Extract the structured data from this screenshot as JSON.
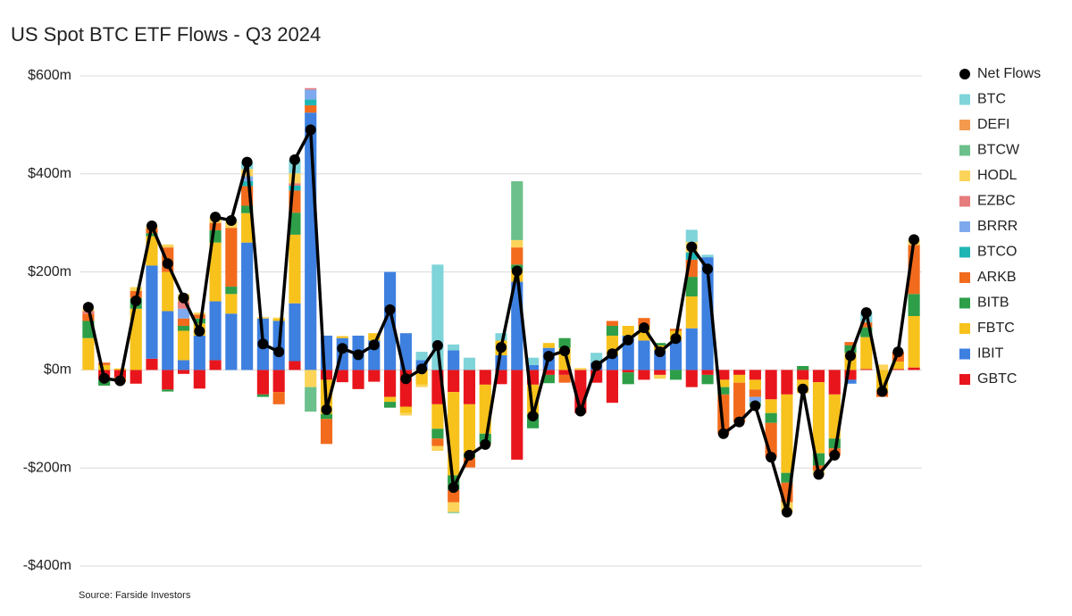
{
  "chart_data": {
    "type": "stacked-bar-line",
    "title": "US Spot BTC ETF Flows - Q3 2024",
    "source": "Source: Farside Investors",
    "ylim": [
      -400,
      600
    ],
    "yticks": [
      {
        "value": -400,
        "label": "-$400m"
      },
      {
        "value": -200,
        "label": "-$200m"
      },
      {
        "value": 0,
        "label": "$0m"
      },
      {
        "value": 200,
        "label": "$200m"
      },
      {
        "value": 400,
        "label": "$400m"
      },
      {
        "value": 600,
        "label": "$600m"
      }
    ],
    "grid": true,
    "legend": "right",
    "line_series": {
      "name": "Net Flows",
      "color": "#000000",
      "values": [
        128,
        -17,
        -22,
        141,
        294,
        217,
        147,
        79,
        312,
        305,
        424,
        53,
        37,
        429,
        490,
        -81,
        44,
        31,
        51,
        123,
        -18,
        2,
        50,
        -240,
        -174,
        -152,
        46,
        202,
        -94,
        28,
        39,
        -84,
        9,
        33,
        61,
        86,
        37,
        64,
        251,
        206,
        -130,
        -106,
        -73,
        -178,
        -290,
        -39,
        -213,
        -174,
        29,
        117,
        -44,
        37,
        266
      ]
    },
    "series": [
      {
        "name": "BTC",
        "color": "#7fd4d9",
        "values": [
          0,
          0,
          0,
          0,
          0,
          0,
          0,
          0,
          0,
          0,
          14,
          0,
          0,
          28,
          0,
          0,
          0,
          0,
          0,
          0,
          0,
          17,
          215,
          12,
          25,
          0,
          15,
          0,
          15,
          0,
          0,
          0,
          20,
          0,
          0,
          0,
          0,
          0,
          25,
          5,
          0,
          0,
          0,
          0,
          0,
          0,
          0,
          0,
          0,
          20,
          0,
          0,
          0
        ]
      },
      {
        "name": "DEFI",
        "color": "#f39a4f",
        "values": [
          0,
          0,
          0,
          0,
          0,
          0,
          0,
          0,
          0,
          0,
          0,
          0,
          0,
          0,
          0,
          0,
          0,
          0,
          0,
          0,
          0,
          0,
          0,
          0,
          0,
          0,
          0,
          0,
          0,
          0,
          0,
          0,
          0,
          0,
          0,
          0,
          0,
          0,
          0,
          0,
          0,
          0,
          0,
          0,
          0,
          0,
          0,
          0,
          0,
          0,
          0,
          0,
          0
        ]
      },
      {
        "name": "BTCW",
        "color": "#6cc08b",
        "values": [
          0,
          0,
          0,
          0,
          0,
          0,
          0,
          0,
          0,
          0,
          0,
          0,
          0,
          0,
          -50,
          0,
          0,
          0,
          0,
          0,
          0,
          0,
          0,
          -2,
          0,
          0,
          0,
          120,
          0,
          0,
          0,
          0,
          0,
          0,
          0,
          0,
          0,
          0,
          0,
          0,
          0,
          0,
          -8,
          0,
          0,
          0,
          0,
          0,
          0,
          0,
          0,
          0,
          0
        ]
      },
      {
        "name": "HODL",
        "color": "#fcd45a",
        "values": [
          5,
          0,
          0,
          8,
          5,
          6,
          15,
          4,
          12,
          15,
          15,
          3,
          2,
          20,
          -35,
          0,
          0,
          0,
          0,
          0,
          -5,
          -5,
          -10,
          -20,
          0,
          0,
          0,
          15,
          0,
          0,
          0,
          4,
          0,
          0,
          0,
          0,
          -8,
          0,
          21,
          0,
          0,
          0,
          0,
          0,
          -20,
          0,
          -8,
          0,
          0,
          0,
          11,
          0,
          11
        ]
      },
      {
        "name": "EZBC",
        "color": "#e67c7c",
        "values": [
          5,
          0,
          0,
          0,
          0,
          0,
          15,
          0,
          0,
          0,
          0,
          0,
          0,
          5,
          3,
          0,
          0,
          0,
          0,
          0,
          0,
          0,
          0,
          0,
          0,
          0,
          0,
          0,
          0,
          0,
          0,
          0,
          0,
          0,
          0,
          0,
          0,
          0,
          0,
          0,
          0,
          0,
          0,
          0,
          0,
          0,
          0,
          0,
          0,
          0,
          0,
          0,
          0
        ]
      },
      {
        "name": "BRRR",
        "color": "#7ea9ee",
        "values": [
          0,
          0,
          0,
          0,
          0,
          0,
          20,
          0,
          0,
          0,
          10,
          0,
          0,
          0,
          20,
          0,
          0,
          0,
          0,
          0,
          0,
          0,
          0,
          0,
          0,
          0,
          0,
          0,
          0,
          0,
          0,
          0,
          0,
          0,
          0,
          0,
          0,
          0,
          0,
          0,
          0,
          0,
          -10,
          0,
          0,
          0,
          0,
          0,
          0,
          0,
          0,
          0,
          0
        ]
      },
      {
        "name": "BTCO",
        "color": "#1fb5b5",
        "values": [
          0,
          0,
          0,
          0,
          0,
          0,
          0,
          0,
          0,
          0,
          10,
          0,
          0,
          10,
          12,
          0,
          0,
          0,
          0,
          0,
          0,
          0,
          0,
          0,
          0,
          0,
          0,
          0,
          0,
          0,
          0,
          0,
          0,
          0,
          0,
          0,
          0,
          0,
          15,
          0,
          0,
          0,
          0,
          0,
          0,
          0,
          0,
          0,
          0,
          0,
          0,
          0,
          0
        ]
      },
      {
        "name": "ARKB",
        "color": "#f26b1d",
        "values": [
          15,
          5,
          -10,
          14,
          10,
          50,
          15,
          8,
          15,
          120,
          40,
          0,
          -25,
          45,
          15,
          -51,
          0,
          0,
          0,
          0,
          0,
          0,
          -15,
          -25,
          -20,
          -2,
          0,
          35,
          0,
          0,
          -16,
          0,
          0,
          10,
          0,
          16,
          0,
          4,
          35,
          0,
          -80,
          -80,
          -15,
          -70,
          -40,
          0,
          -10,
          -14,
          7,
          10,
          -10,
          20,
          100
        ]
      },
      {
        "name": "BITB",
        "color": "#2e9e48",
        "values": [
          35,
          -12,
          0,
          22,
          6,
          -4,
          10,
          10,
          25,
          15,
          15,
          -5,
          0,
          45,
          0,
          -10,
          0,
          0,
          0,
          -12,
          0,
          0,
          -20,
          -30,
          -9,
          -20,
          0,
          10,
          -29,
          -17,
          20,
          0,
          0,
          20,
          -24,
          0,
          5,
          -20,
          40,
          -19,
          -15,
          0,
          0,
          -20,
          -20,
          8,
          -25,
          -20,
          15,
          20,
          0,
          0,
          45
        ]
      },
      {
        "name": "FBTC",
        "color": "#f8c21c",
        "values": [
          65,
          10,
          3,
          125,
          60,
          80,
          60,
          25,
          120,
          40,
          60,
          0,
          5,
          140,
          0,
          -70,
          4,
          0,
          15,
          -10,
          -13,
          -30,
          -50,
          -170,
          -100,
          -100,
          30,
          25,
          -60,
          10,
          45,
          0,
          0,
          40,
          20,
          30,
          10,
          20,
          65,
          0,
          -15,
          -16,
          -20,
          -28,
          -160,
          -27,
          -145,
          -90,
          35,
          65,
          -45,
          15,
          105
        ]
      },
      {
        "name": "IBIT",
        "color": "#3d80e0",
        "values": [
          0,
          0,
          0,
          0,
          190,
          120,
          20,
          70,
          120,
          115,
          260,
          105,
          100,
          118,
          525,
          70,
          65,
          70,
          60,
          200,
          75,
          20,
          0,
          40,
          0,
          0,
          30,
          180,
          10,
          45,
          0,
          0,
          15,
          30,
          70,
          60,
          40,
          60,
          85,
          230,
          0,
          0,
          0,
          0,
          0,
          0,
          0,
          0,
          -8,
          0,
          0,
          0,
          0
        ]
      },
      {
        "name": "GBTC",
        "color": "#e8161c",
        "values": [
          0,
          -20,
          -15,
          -28,
          23,
          -40,
          -8,
          -38,
          20,
          0,
          0,
          -50,
          -45,
          18,
          0,
          -20,
          -25,
          -39,
          -24,
          -55,
          -75,
          0,
          -70,
          -45,
          -70,
          -30,
          -29,
          -183,
          -30,
          -10,
          -10,
          -88,
          -26,
          -67,
          -5,
          -20,
          -10,
          0,
          -35,
          -10,
          -20,
          -10,
          -20,
          -60,
          -50,
          -20,
          -25,
          -50,
          -20,
          2,
          0,
          2,
          5
        ]
      }
    ]
  }
}
